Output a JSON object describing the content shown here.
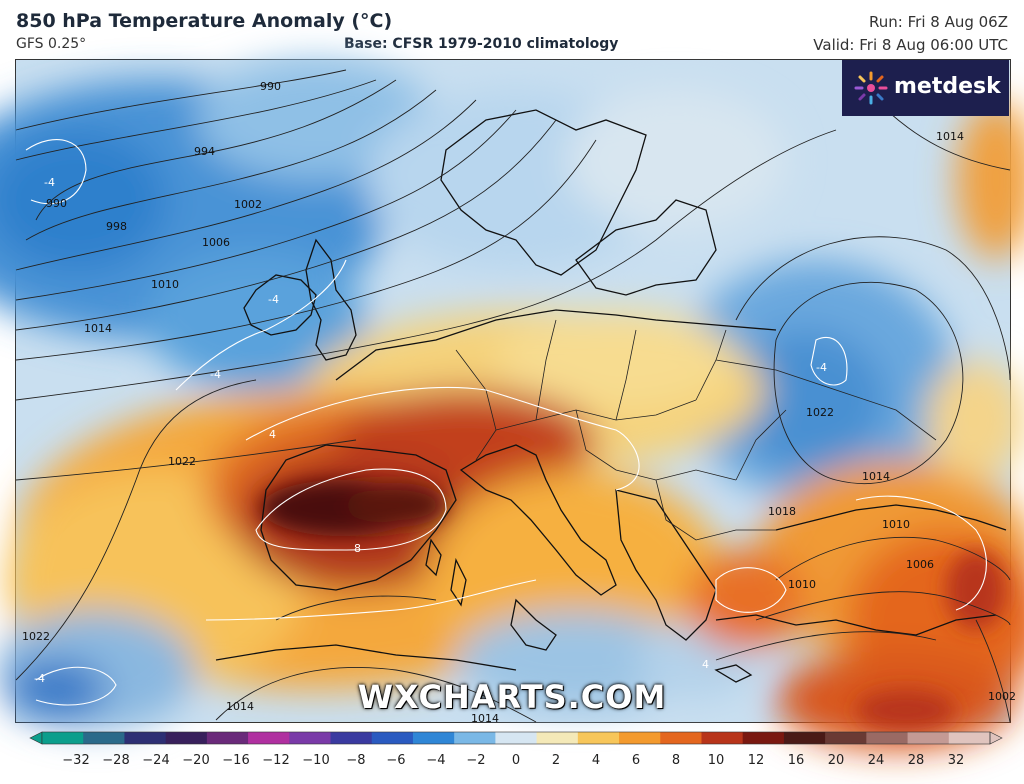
{
  "header": {
    "title": "850 hPa Temperature Anomaly (°C)",
    "model": "GFS 0.25°",
    "base": "Base: CFSR 1979-2010 climatology",
    "run": "Run: Fri 8 Aug 06Z",
    "valid": "Valid: Fri 8 Aug 06:00 UTC"
  },
  "logo": {
    "text": "metdesk",
    "icon": "metdesk-sun-icon"
  },
  "watermark": "WXCHARTS.COM",
  "isobar_labels": [
    "990",
    "994",
    "1002",
    "998",
    "1006",
    "990",
    "1010",
    "1014",
    "1022",
    "1022",
    "1018",
    "1014",
    "1010",
    "1006",
    "1014",
    "1022",
    "1010",
    "1014",
    "1014",
    "1002"
  ],
  "anomaly_labels": [
    "-4",
    "-4",
    "-4",
    "-4",
    "4",
    "8",
    "4",
    "-4"
  ],
  "colorbar": {
    "ticks": [
      "−32",
      "−28",
      "−24",
      "−20",
      "−16",
      "−12",
      "−10",
      "−8",
      "−6",
      "−4",
      "−2",
      "0",
      "2",
      "4",
      "6",
      "8",
      "10",
      "12",
      "16",
      "20",
      "24",
      "28",
      "32"
    ],
    "colors": [
      "#0b9e8c",
      "#2a6a8a",
      "#2d2f74",
      "#38205c",
      "#6a2a7a",
      "#b030a0",
      "#7a3aa8",
      "#3a3aa0",
      "#2a5ac0",
      "#2f86d6",
      "#7ab8e6",
      "#d6e6f2",
      "#f4e9b8",
      "#f7c65a",
      "#f39a2e",
      "#e4661e",
      "#b8341a",
      "#7a1810",
      "#4a1a16",
      "#6a3a34",
      "#9a6a64",
      "#c49a94",
      "#e0c4be"
    ]
  }
}
